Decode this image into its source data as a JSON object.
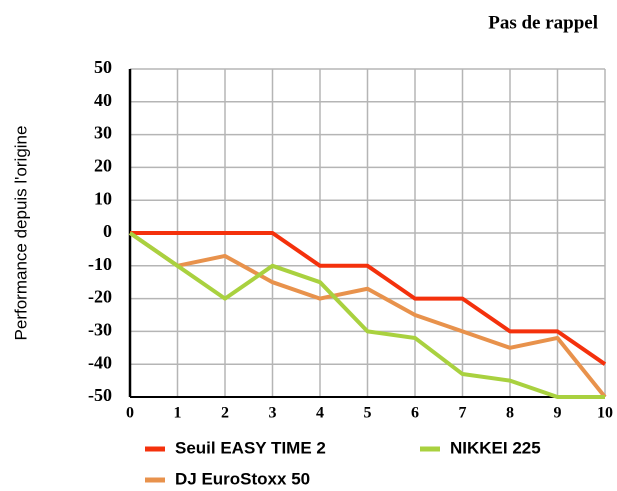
{
  "chart_data": {
    "type": "line",
    "title": "Pas de rappel",
    "y_label": "Performance depuis l'origine",
    "x": [
      0,
      1,
      2,
      3,
      4,
      5,
      6,
      7,
      8,
      9,
      10
    ],
    "xlim": [
      0,
      10
    ],
    "xticks": [
      0,
      1,
      2,
      3,
      4,
      5,
      6,
      7,
      8,
      9,
      10
    ],
    "ylim": [
      -50,
      50
    ],
    "yticks": [
      -50,
      -40,
      -30,
      -20,
      -10,
      0,
      10,
      20,
      30,
      40,
      50
    ],
    "grid": true,
    "legend": "bottom",
    "series": [
      {
        "name": "Seuil EASY TIME 2",
        "color": "#f4310c",
        "values": [
          0,
          0,
          0,
          0,
          -10,
          -10,
          -20,
          -20,
          -30,
          -30,
          -40
        ]
      },
      {
        "name": "DJ EuroStoxx 50",
        "color": "#e8924c",
        "values": [
          0,
          -10,
          -7,
          -15,
          -20,
          -17,
          -25,
          -30,
          -35,
          -32,
          -50
        ]
      },
      {
        "name": "NIKKEI 225",
        "color": "#a9d13f",
        "values": [
          0,
          -10,
          -20,
          -10,
          -15,
          -30,
          -32,
          -43,
          -45,
          -50,
          -50
        ]
      }
    ]
  }
}
